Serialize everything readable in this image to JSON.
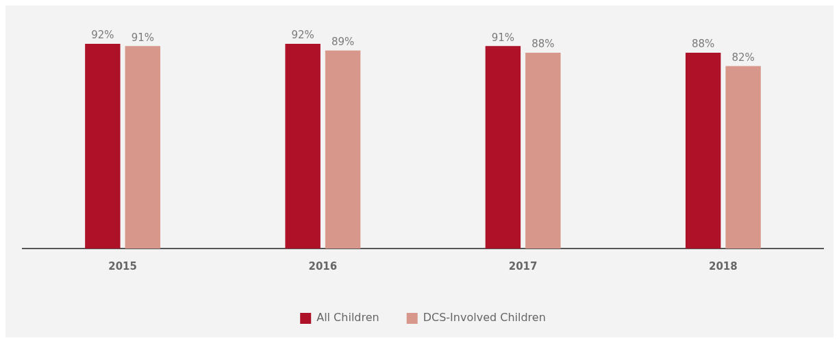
{
  "chart_data": {
    "type": "bar",
    "categories": [
      "2015",
      "2016",
      "2017",
      "2018"
    ],
    "series": [
      {
        "name": "All Children",
        "color": "#ae1228",
        "values": [
          92,
          92,
          91,
          88
        ],
        "value_labels": [
          "92%",
          "92%",
          "91%",
          "88%"
        ]
      },
      {
        "name": "DCS-Involved Children",
        "color": "#d7978a",
        "values": [
          91,
          89,
          88,
          82
        ],
        "value_labels": [
          "91%",
          "89%",
          "88%",
          "82%"
        ]
      }
    ],
    "tick_labels": "x",
    "grid": false,
    "legend": "bottom"
  }
}
